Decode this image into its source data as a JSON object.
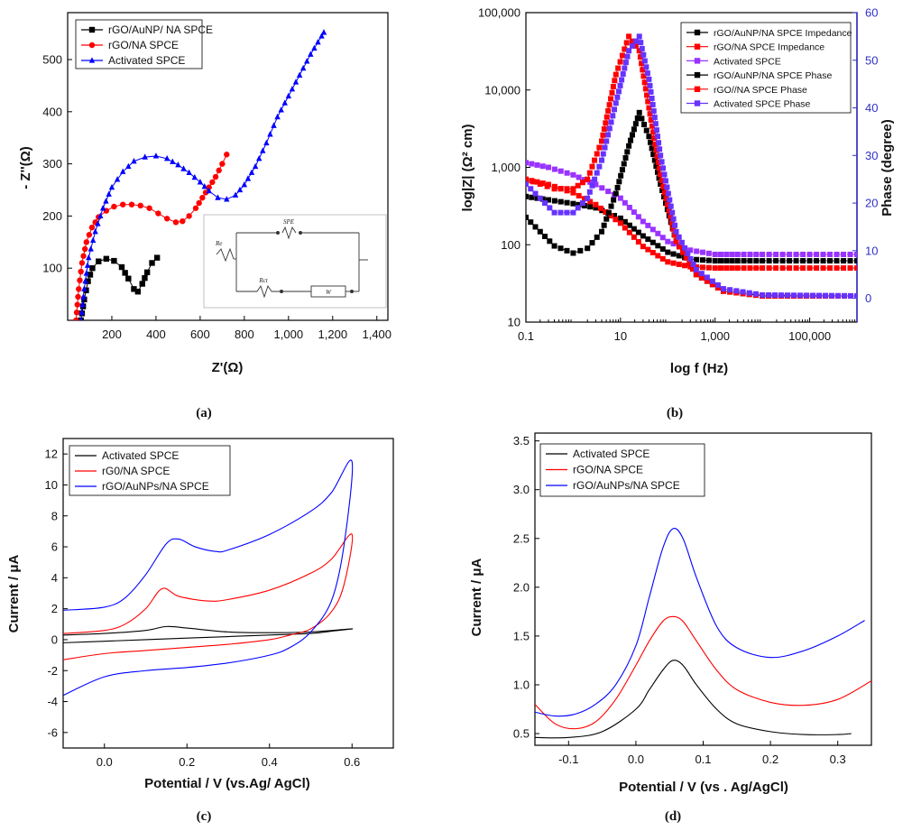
{
  "chart_data": [
    {
      "id": "a",
      "type": "scatter",
      "caption": "(a)",
      "xlabel": "Z'(Ω)",
      "ylabel": "- Z''(Ω)",
      "xlim": [
        0,
        1450
      ],
      "ylim": [
        0,
        590
      ],
      "xticks": [
        {
          "v": 200,
          "t": "200"
        },
        {
          "v": 400,
          "t": "400"
        },
        {
          "v": 600,
          "t": "600"
        },
        {
          "v": 800,
          "t": "800"
        },
        {
          "v": 1000,
          "t": "1,000"
        },
        {
          "v": 1200,
          "t": "1,200"
        },
        {
          "v": 1400,
          "t": "1,400"
        }
      ],
      "yticks": [
        {
          "v": 100,
          "t": "100"
        },
        {
          "v": 200,
          "t": "200"
        },
        {
          "v": 300,
          "t": "300"
        },
        {
          "v": 400,
          "t": "400"
        },
        {
          "v": 500,
          "t": "500"
        }
      ],
      "legend_position": "top-left",
      "series": [
        {
          "name": "rGO/AuNP/ NA SPCE",
          "color": "#000000",
          "marker": "square",
          "x": [
            60,
            75,
            92,
            112,
            140,
            175,
            210,
            245,
            275,
            300,
            318,
            338,
            360,
            382,
            405
          ],
          "y": [
            0,
            40,
            75,
            100,
            113,
            118,
            114,
            102,
            80,
            60,
            55,
            70,
            92,
            110,
            120
          ]
        },
        {
          "name": "rGO/NA SPCE",
          "color": "#ff0000",
          "marker": "circle",
          "x": [
            38,
            50,
            65,
            85,
            110,
            140,
            175,
            210,
            250,
            290,
            330,
            370,
            410,
            450,
            490,
            520,
            550,
            580,
            610,
            640,
            670,
            700,
            720
          ],
          "y": [
            0,
            60,
            110,
            150,
            178,
            198,
            210,
            218,
            222,
            222,
            220,
            215,
            205,
            195,
            188,
            190,
            200,
            215,
            235,
            255,
            275,
            300,
            318
          ]
        },
        {
          "name": "Activated SPCE",
          "color": "#0000ff",
          "marker": "triangle",
          "x": [
            60,
            75,
            95,
            125,
            160,
            200,
            250,
            300,
            350,
            400,
            450,
            500,
            550,
            600,
            640,
            680,
            720,
            760,
            800,
            850,
            900,
            950,
            1000,
            1050,
            1100,
            1150,
            1160
          ],
          "y": [
            0,
            60,
            120,
            170,
            215,
            255,
            285,
            305,
            313,
            315,
            310,
            298,
            283,
            265,
            248,
            235,
            232,
            240,
            260,
            295,
            340,
            390,
            430,
            470,
            510,
            545,
            552
          ]
        }
      ],
      "inset_labels": {
        "spe": "SPE",
        "re": "Re",
        "rct": "Rct",
        "w": "W"
      }
    },
    {
      "id": "b",
      "type": "scatter",
      "caption": "(b)",
      "xlabel": "log f (Hz)",
      "ylabel": "log|Z| (Ω² cm)",
      "ylabel_right": "Phase (degree)",
      "xscale": "log",
      "yscale": "log",
      "xlim": [
        0.1,
        1000000
      ],
      "ylim": [
        10,
        100000
      ],
      "y2lim": [
        -5,
        60
      ],
      "xticks": [
        {
          "v": 0.1,
          "t": "0.1"
        },
        {
          "v": 10,
          "t": "10"
        },
        {
          "v": 1000,
          "t": "1,000"
        },
        {
          "v": 100000,
          "t": "100,000"
        }
      ],
      "yticks": [
        {
          "v": 10,
          "t": "10"
        },
        {
          "v": 100,
          "t": "100"
        },
        {
          "v": 1000,
          "t": "1,000"
        },
        {
          "v": 10000,
          "t": "10,000"
        },
        {
          "v": 100000,
          "t": "100,000"
        }
      ],
      "y2ticks": [
        {
          "v": 0,
          "t": "0"
        },
        {
          "v": 10,
          "t": "10"
        },
        {
          "v": 20,
          "t": "20"
        },
        {
          "v": 30,
          "t": "30"
        },
        {
          "v": 40,
          "t": "40"
        },
        {
          "v": 50,
          "t": "50"
        },
        {
          "v": 60,
          "t": "60"
        }
      ],
      "legend_position": "top-right",
      "series": [
        {
          "name": "rGO/AuNP/NA SPCE Impedance",
          "color": "#000000",
          "axis": "left",
          "x": [
            0.1,
            0.3,
            1,
            3,
            10,
            30,
            100,
            300,
            1000,
            3000,
            10000,
            100000,
            1000000
          ],
          "y": [
            420,
            380,
            340,
            300,
            220,
            130,
            80,
            65,
            62,
            62,
            62,
            62,
            62
          ]
        },
        {
          "name": "rGO/NA SPCE Impedance",
          "color": "#ff0000",
          "axis": "left",
          "x": [
            0.1,
            0.3,
            1,
            3,
            10,
            30,
            100,
            300,
            1000,
            3000,
            10000,
            100000,
            1000000
          ],
          "y": [
            700,
            600,
            470,
            330,
            190,
            95,
            60,
            52,
            50,
            50,
            50,
            50,
            50
          ]
        },
        {
          "name": "Activated SPCE",
          "color": "#9933ff",
          "axis": "left",
          "x": [
            0.1,
            0.3,
            1,
            3,
            10,
            30,
            100,
            300,
            1000,
            3000,
            10000,
            100000,
            1000000
          ],
          "y": [
            1150,
            1000,
            800,
            600,
            400,
            200,
            110,
            85,
            75,
            75,
            75,
            75,
            75
          ]
        },
        {
          "name": "rGO/AuNP/NA SPCE Phase",
          "color": "#000000",
          "axis": "right",
          "x": [
            0.1,
            0.2,
            0.4,
            1,
            2,
            4,
            8,
            15,
            25,
            40,
            70,
            150,
            400,
            1500,
            10000,
            1000000
          ],
          "y": [
            17,
            14,
            11,
            9.5,
            10.5,
            14,
            22,
            32,
            39,
            34,
            24,
            12,
            5,
            1.5,
            0.5,
            0.5
          ]
        },
        {
          "name": "rGO//NA SPCE Phase",
          "color": "#ff0000",
          "axis": "right",
          "x": [
            0.1,
            0.2,
            0.4,
            1,
            2,
            4,
            8,
            15,
            25,
            40,
            70,
            150,
            400,
            1500,
            10000,
            1000000
          ],
          "y": [
            25,
            24,
            23,
            23,
            25,
            33,
            47,
            55,
            52,
            40,
            26,
            12,
            5,
            1.5,
            0.5,
            0.5
          ]
        },
        {
          "name": "Activated SPCE Phase",
          "color": "#6633ff",
          "axis": "right",
          "x": [
            0.1,
            0.2,
            0.4,
            1,
            2,
            4,
            8,
            15,
            25,
            40,
            70,
            150,
            400,
            1500,
            10000,
            1000000
          ],
          "y": [
            24,
            21,
            18,
            18,
            21,
            29,
            41,
            52,
            55,
            46,
            30,
            14,
            6,
            2,
            0.7,
            0.5
          ]
        }
      ]
    },
    {
      "id": "c",
      "type": "line",
      "caption": "(c)",
      "xlabel": "Potential / V (vs.Ag/ AgCl)",
      "ylabel": "Current / μA",
      "xlim": [
        -0.1,
        0.7
      ],
      "ylim": [
        -7,
        13
      ],
      "xticks": [
        {
          "v": 0,
          "t": "0.0"
        },
        {
          "v": 0.2,
          "t": "0.2"
        },
        {
          "v": 0.4,
          "t": "0.4"
        },
        {
          "v": 0.6,
          "t": "0.6"
        }
      ],
      "yticks": [
        {
          "v": -6,
          "t": "-6"
        },
        {
          "v": -4,
          "t": "-4"
        },
        {
          "v": -2,
          "t": "-2"
        },
        {
          "v": 0,
          "t": "0"
        },
        {
          "v": 2,
          "t": "2"
        },
        {
          "v": 4,
          "t": "4"
        },
        {
          "v": 6,
          "t": "6"
        },
        {
          "v": 8,
          "t": "8"
        },
        {
          "v": 10,
          "t": "10"
        },
        {
          "v": 12,
          "t": "12"
        }
      ],
      "legend_position": "top-left",
      "series": [
        {
          "name": "Activated SPCE",
          "color": "#000000",
          "x": [
            -0.1,
            0.0,
            0.1,
            0.15,
            0.2,
            0.3,
            0.4,
            0.5,
            0.6,
            0.55,
            0.5,
            0.4,
            0.3,
            0.2,
            0.1,
            0.0,
            -0.1
          ],
          "y": [
            0.3,
            0.4,
            0.6,
            0.85,
            0.75,
            0.5,
            0.45,
            0.5,
            0.7,
            0.55,
            0.4,
            0.3,
            0.2,
            0.1,
            0.0,
            -0.1,
            -0.2
          ]
        },
        {
          "name": "rG0/NA SPCE",
          "color": "#ff0000",
          "x": [
            -0.1,
            0.0,
            0.05,
            0.1,
            0.14,
            0.18,
            0.25,
            0.3,
            0.4,
            0.5,
            0.55,
            0.6,
            0.58,
            0.55,
            0.5,
            0.45,
            0.4,
            0.3,
            0.2,
            0.1,
            0.0,
            -0.1
          ],
          "y": [
            0.4,
            0.6,
            1.0,
            2.0,
            3.3,
            2.8,
            2.5,
            2.6,
            3.2,
            4.3,
            5.2,
            6.8,
            3.5,
            1.8,
            0.7,
            0.3,
            0.0,
            -0.3,
            -0.5,
            -0.7,
            -0.9,
            -1.3
          ]
        },
        {
          "name": "rGO/AuNPs/NA SPCE",
          "color": "#0000ff",
          "x": [
            -0.1,
            0.0,
            0.05,
            0.1,
            0.15,
            0.18,
            0.22,
            0.27,
            0.3,
            0.4,
            0.5,
            0.55,
            0.6,
            0.58,
            0.55,
            0.5,
            0.45,
            0.4,
            0.3,
            0.2,
            0.1,
            0.0,
            -0.1
          ],
          "y": [
            1.9,
            2.1,
            2.7,
            4.2,
            6.2,
            6.5,
            6.0,
            5.7,
            5.8,
            6.8,
            8.3,
            9.5,
            11.5,
            6.0,
            2.5,
            0.5,
            -0.5,
            -1.0,
            -1.5,
            -1.8,
            -2.0,
            -2.4,
            -3.6
          ]
        }
      ]
    },
    {
      "id": "d",
      "type": "line",
      "caption": "(d)",
      "xlabel": "Potential / V (vs . Ag/AgCl)",
      "ylabel": "Current / μA",
      "xlim": [
        -0.15,
        0.35
      ],
      "ylim": [
        0.38,
        3.58
      ],
      "xticks": [
        {
          "v": -0.1,
          "t": "-0.1"
        },
        {
          "v": 0,
          "t": "0.0"
        },
        {
          "v": 0.1,
          "t": "0.1"
        },
        {
          "v": 0.2,
          "t": "0.2"
        },
        {
          "v": 0.3,
          "t": "0.3"
        }
      ],
      "yticks": [
        {
          "v": 0.5,
          "t": "0.5"
        },
        {
          "v": 1.0,
          "t": "1.0"
        },
        {
          "v": 1.5,
          "t": "1.5"
        },
        {
          "v": 2.0,
          "t": "2.0"
        },
        {
          "v": 2.5,
          "t": "2.5"
        },
        {
          "v": 3.0,
          "t": "3.0"
        },
        {
          "v": 3.5,
          "t": "3.5"
        }
      ],
      "legend_position": "top-left",
      "series": [
        {
          "name": "Activated SPCE",
          "color": "#000000",
          "x": [
            -0.15,
            -0.1,
            -0.05,
            0.0,
            0.02,
            0.04,
            0.055,
            0.07,
            0.09,
            0.12,
            0.15,
            0.2,
            0.25,
            0.3,
            0.32
          ],
          "y": [
            0.46,
            0.46,
            0.52,
            0.75,
            0.95,
            1.15,
            1.25,
            1.2,
            1.0,
            0.75,
            0.6,
            0.52,
            0.49,
            0.49,
            0.5
          ]
        },
        {
          "name": "rGO/NA SPCE",
          "color": "#ff0000",
          "x": [
            -0.15,
            -0.12,
            -0.09,
            -0.06,
            -0.03,
            0.0,
            0.02,
            0.04,
            0.055,
            0.07,
            0.09,
            0.12,
            0.15,
            0.2,
            0.25,
            0.3,
            0.35
          ],
          "y": [
            0.8,
            0.6,
            0.55,
            0.62,
            0.85,
            1.2,
            1.45,
            1.65,
            1.7,
            1.65,
            1.45,
            1.15,
            0.95,
            0.82,
            0.79,
            0.85,
            1.04
          ]
        },
        {
          "name": "rGO/AuNPs/NA SPCE",
          "color": "#0000ff",
          "x": [
            -0.15,
            -0.12,
            -0.09,
            -0.06,
            -0.03,
            0.0,
            0.02,
            0.04,
            0.055,
            0.07,
            0.09,
            0.12,
            0.15,
            0.2,
            0.25,
            0.3,
            0.34
          ],
          "y": [
            0.72,
            0.68,
            0.7,
            0.8,
            1.0,
            1.4,
            1.9,
            2.4,
            2.6,
            2.5,
            2.1,
            1.6,
            1.38,
            1.28,
            1.35,
            1.5,
            1.66
          ]
        }
      ]
    }
  ]
}
